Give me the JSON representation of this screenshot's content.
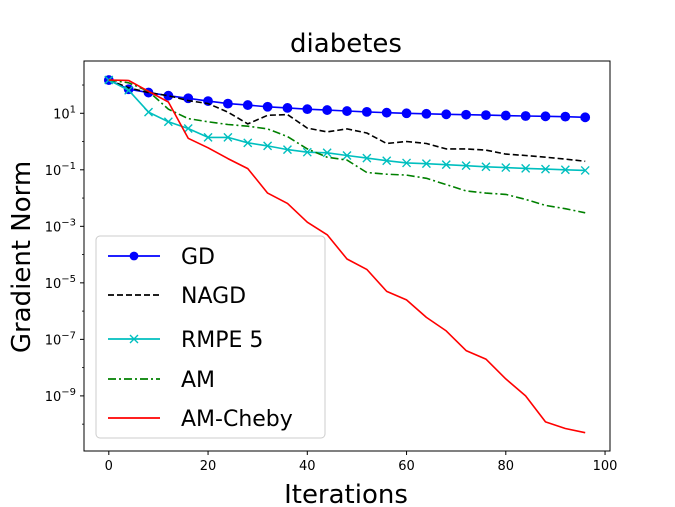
{
  "chart_data": {
    "type": "line",
    "title": "diabetes",
    "xlabel": "Iterations",
    "ylabel": "Gradient Norm",
    "xlim": [
      -5,
      101
    ],
    "ylim_log10": [
      -10.95,
      2.85
    ],
    "yscale": "log",
    "grid": false,
    "legend_position": "lower-left",
    "x_ticks": [
      {
        "value": 0,
        "label": "0"
      },
      {
        "value": 20,
        "label": "20"
      },
      {
        "value": 40,
        "label": "40"
      },
      {
        "value": 60,
        "label": "60"
      },
      {
        "value": 80,
        "label": "80"
      },
      {
        "value": 100,
        "label": "100"
      }
    ],
    "y_ticks": [
      {
        "exp": 1,
        "base": "10",
        "sup": "1"
      },
      {
        "exp": -1,
        "base": "10",
        "sup": "−1"
      },
      {
        "exp": -3,
        "base": "10",
        "sup": "−3"
      },
      {
        "exp": -5,
        "base": "10",
        "sup": "−5"
      },
      {
        "exp": -7,
        "base": "10",
        "sup": "−7"
      },
      {
        "exp": -9,
        "base": "10",
        "sup": "−9"
      }
    ],
    "x": [
      0,
      4,
      8,
      12,
      16,
      20,
      24,
      28,
      32,
      36,
      40,
      44,
      48,
      52,
      56,
      60,
      64,
      68,
      72,
      76,
      80,
      84,
      88,
      92,
      96
    ],
    "series": [
      {
        "name": "GD",
        "color": "#0000ff",
        "style": "solid",
        "marker": "circle",
        "y": [
          150.0,
          71.0,
          54.0,
          42.0,
          34.0,
          27.0,
          22.0,
          19.5,
          17.0,
          15.5,
          14.0,
          13.0,
          12.0,
          11.2,
          10.5,
          10.0,
          9.6,
          9.2,
          8.9,
          8.6,
          8.3,
          8.0,
          7.8,
          7.6,
          7.2
        ]
      },
      {
        "name": "NAGD",
        "color": "#000000",
        "style": "dashed",
        "marker": "none",
        "y": [
          150.0,
          80.0,
          54.0,
          42.0,
          28.0,
          22.0,
          11.0,
          4.2,
          8.5,
          9.0,
          3.0,
          2.2,
          2.8,
          2.0,
          0.85,
          1.0,
          0.85,
          0.55,
          0.55,
          0.5,
          0.36,
          0.32,
          0.28,
          0.24,
          0.2
        ]
      },
      {
        "name": "RMPE 5",
        "color": "#00bfbf",
        "style": "solid",
        "marker": "x",
        "y": [
          150.0,
          65.0,
          11.0,
          5.0,
          2.9,
          1.4,
          1.4,
          0.9,
          0.7,
          0.52,
          0.42,
          0.4,
          0.32,
          0.26,
          0.21,
          0.175,
          0.165,
          0.152,
          0.14,
          0.128,
          0.12,
          0.112,
          0.106,
          0.1,
          0.095
        ]
      },
      {
        "name": "AM",
        "color": "#008000",
        "style": "dashdot",
        "marker": "none",
        "y": [
          150.0,
          120.0,
          60.0,
          14.0,
          6.5,
          5.0,
          4.0,
          3.5,
          2.8,
          1.5,
          0.55,
          0.28,
          0.22,
          0.08,
          0.07,
          0.065,
          0.05,
          0.03,
          0.018,
          0.015,
          0.0135,
          0.009,
          0.0055,
          0.0042,
          0.003
        ]
      },
      {
        "name": "AM-Cheby",
        "color": "#ff0000",
        "style": "solid",
        "marker": "none",
        "y": [
          150.0,
          145.0,
          60.0,
          25.0,
          1.3,
          0.6,
          0.25,
          0.11,
          0.015,
          0.0065,
          0.0014,
          0.0005,
          7e-05,
          3e-05,
          5e-06,
          2.5e-06,
          6e-07,
          2e-07,
          4e-08,
          2e-08,
          4e-09,
          1e-09,
          1.2e-10,
          7e-11,
          5e-11
        ]
      }
    ]
  }
}
